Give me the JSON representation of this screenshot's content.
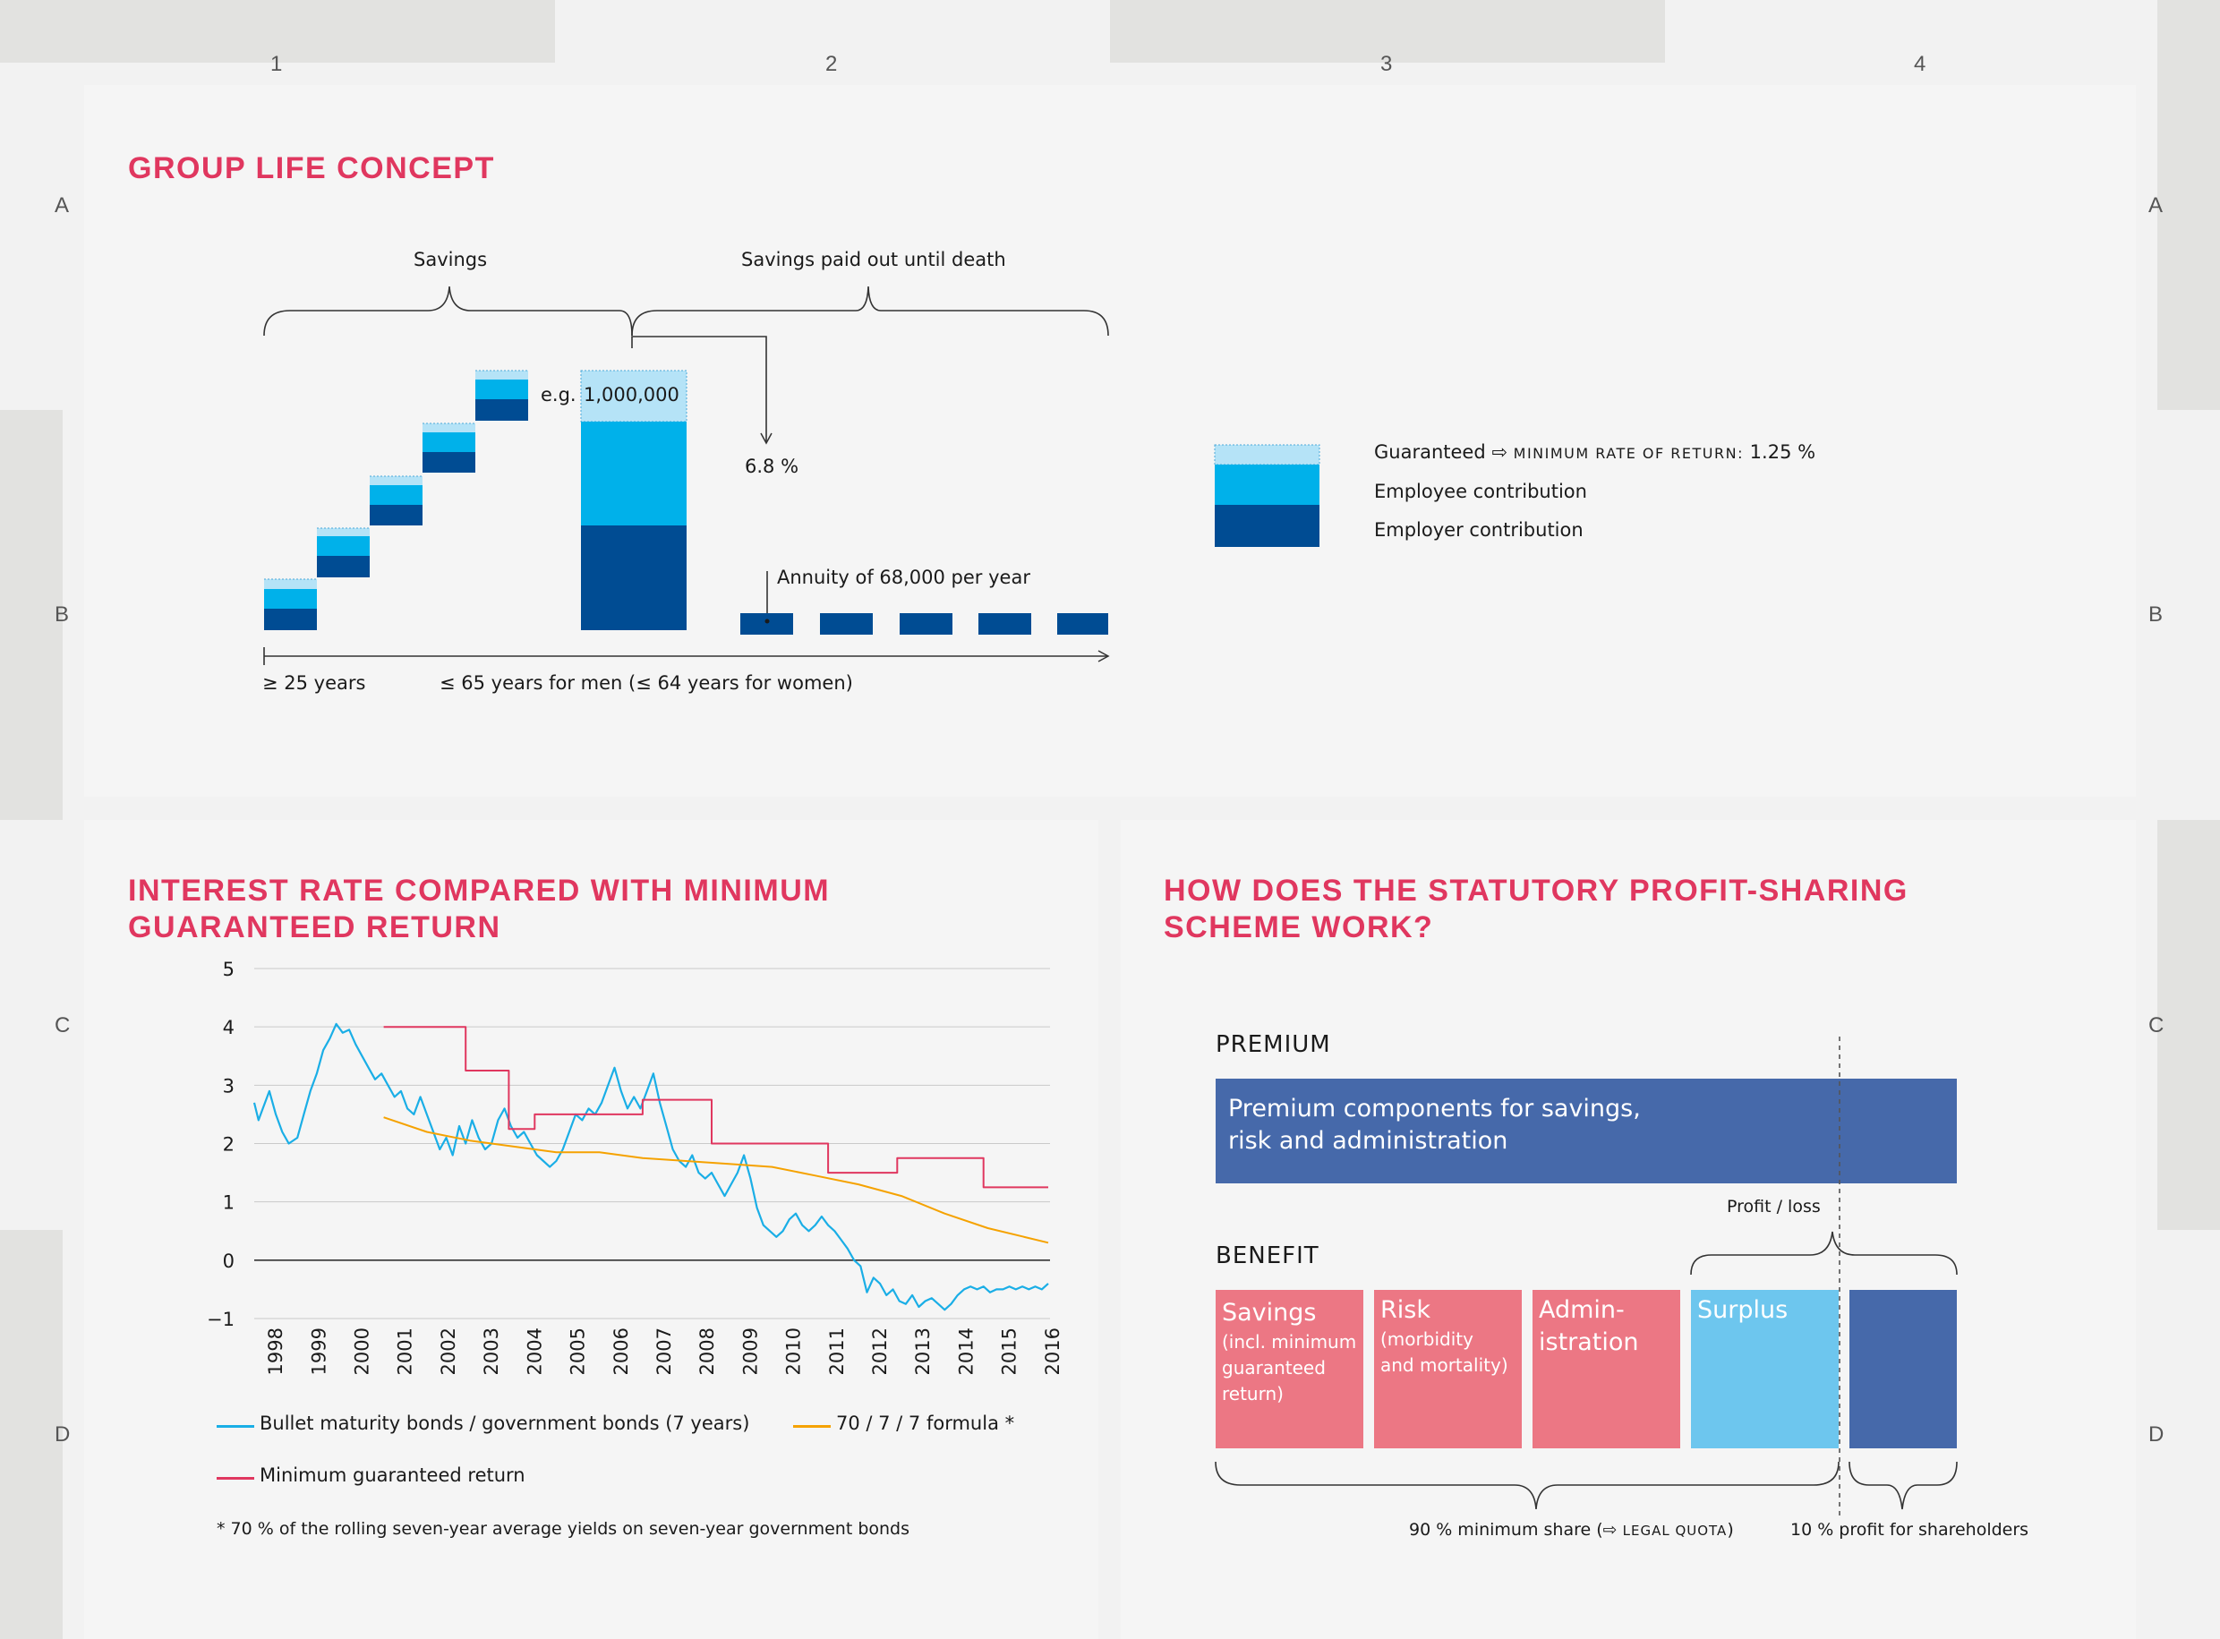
{
  "grid": {
    "columns": [
      "1",
      "2",
      "3",
      "4"
    ],
    "rows": [
      "A",
      "B",
      "C",
      "D"
    ]
  },
  "group_life": {
    "title": "GROUP LIFE CONCEPT",
    "savings_label": "Savings",
    "paid_out_label": "Savings paid out until death",
    "example_prefix": "e.g.",
    "example_value": "1,000,000",
    "rate_label": "6.8 %",
    "annuity_label": "Annuity of 68,000 per year",
    "age_start": "≥ 25 years",
    "age_end": "≤ 65 years for men (≤ 64 years for women)",
    "legend": {
      "guaranteed": "Guaranteed",
      "guaranteed_arrow": "⇨",
      "min_rate": "MINIMUM RATE OF RETURN:",
      "min_rate_value": "1.25 %",
      "employee": "Employee contribution",
      "employer": "Employer contribution"
    },
    "colors": {
      "guaranteed": "#b5e3f7",
      "employee": "#00b1ea",
      "employer": "#004c93"
    }
  },
  "interest": {
    "title_line1": "INTEREST RATE COMPARED WITH MINIMUM",
    "title_line2": "GUARANTEED RETURN",
    "legend_bonds": "Bullet maturity bonds / government bonds (7 years)",
    "legend_formula": "70 / 7 / 7 formula *",
    "legend_min": "Minimum guaranteed return",
    "footnote": "* 70 % of the rolling seven-year average yields on seven-year government bonds",
    "colors": {
      "bonds": "#1aaee6",
      "formula": "#f5a200",
      "min": "#e0375f"
    }
  },
  "chart_data": {
    "type": "line",
    "title": "INTEREST RATE COMPARED WITH MINIMUM GUARANTEED RETURN",
    "xlabel": "",
    "ylabel": "",
    "ylim": [
      -1,
      5
    ],
    "yticks": [
      "5",
      "4",
      "3",
      "2",
      "1",
      "0",
      "−1"
    ],
    "xlim": [
      1998,
      2016.4
    ],
    "xticks": [
      "1998",
      "1999",
      "2000",
      "2001",
      "2002",
      "2003",
      "2004",
      "2005",
      "2006",
      "2007",
      "2008",
      "2009",
      "2010",
      "2011",
      "2012",
      "2013",
      "2014",
      "2015",
      "2016"
    ],
    "grid": true,
    "series": [
      {
        "name": "Bullet maturity bonds / government bonds (7 years)",
        "x": [
          1998.0,
          1998.1,
          1998.2,
          1998.35,
          1998.5,
          1998.65,
          1998.8,
          1999.0,
          1999.15,
          1999.3,
          1999.45,
          1999.6,
          1999.75,
          1999.9,
          2000.05,
          2000.2,
          2000.35,
          2000.5,
          2000.65,
          2000.8,
          2000.95,
          2001.1,
          2001.25,
          2001.4,
          2001.55,
          2001.7,
          2001.85,
          2002.0,
          2002.15,
          2002.3,
          2002.45,
          2002.6,
          2002.75,
          2002.9,
          2003.05,
          2003.2,
          2003.35,
          2003.5,
          2003.65,
          2003.8,
          2003.95,
          2004.1,
          2004.25,
          2004.4,
          2004.55,
          2004.7,
          2004.85,
          2005.0,
          2005.15,
          2005.3,
          2005.45,
          2005.6,
          2005.75,
          2005.9,
          2006.05,
          2006.2,
          2006.35,
          2006.5,
          2006.65,
          2006.8,
          2006.95,
          2007.1,
          2007.25,
          2007.4,
          2007.55,
          2007.7,
          2007.85,
          2008.0,
          2008.15,
          2008.3,
          2008.45,
          2008.6,
          2008.75,
          2008.9,
          2009.05,
          2009.2,
          2009.35,
          2009.5,
          2009.65,
          2009.8,
          2009.95,
          2010.1,
          2010.25,
          2010.4,
          2010.55,
          2010.7,
          2010.85,
          2011.0,
          2011.15,
          2011.3,
          2011.45,
          2011.6,
          2011.75,
          2011.9,
          2012.05,
          2012.2,
          2012.35,
          2012.5,
          2012.65,
          2012.8,
          2012.95,
          2013.1,
          2013.25,
          2013.4,
          2013.55,
          2013.7,
          2013.85,
          2014.0,
          2014.15,
          2014.3,
          2014.45,
          2014.6,
          2014.75,
          2014.9,
          2015.05,
          2015.2,
          2015.35,
          2015.5,
          2015.65,
          2015.8,
          2015.95,
          2016.1,
          2016.25,
          2016.4
        ],
        "values": [
          2.7,
          2.4,
          2.6,
          2.9,
          2.5,
          2.2,
          2.0,
          2.1,
          2.5,
          2.9,
          3.2,
          3.6,
          3.8,
          4.05,
          3.9,
          3.95,
          3.7,
          3.5,
          3.3,
          3.1,
          3.2,
          3.0,
          2.8,
          2.9,
          2.6,
          2.5,
          2.8,
          2.5,
          2.2,
          1.9,
          2.1,
          1.8,
          2.3,
          2.0,
          2.4,
          2.1,
          1.9,
          2.0,
          2.4,
          2.6,
          2.3,
          2.1,
          2.2,
          2.0,
          1.8,
          1.7,
          1.6,
          1.7,
          1.9,
          2.2,
          2.5,
          2.4,
          2.6,
          2.5,
          2.7,
          3.0,
          3.3,
          2.9,
          2.6,
          2.8,
          2.6,
          2.9,
          3.2,
          2.7,
          2.3,
          1.9,
          1.7,
          1.6,
          1.8,
          1.5,
          1.4,
          1.5,
          1.3,
          1.1,
          1.3,
          1.5,
          1.8,
          1.4,
          0.9,
          0.6,
          0.5,
          0.4,
          0.5,
          0.7,
          0.8,
          0.6,
          0.5,
          0.6,
          0.75,
          0.6,
          0.5,
          0.35,
          0.2,
          0.0,
          -0.1,
          -0.55,
          -0.3,
          -0.4,
          -0.6,
          -0.5,
          -0.7,
          -0.75,
          -0.6,
          -0.8,
          -0.7,
          -0.65,
          -0.75,
          -0.85,
          -0.75,
          -0.6,
          -0.5,
          -0.45,
          -0.5,
          -0.45,
          -0.55,
          -0.5,
          -0.5,
          -0.45,
          -0.5,
          -0.45,
          -0.5,
          -0.45,
          -0.5,
          -0.4
        ]
      },
      {
        "name": "70 / 7 / 7 formula *",
        "x": [
          2001,
          2002,
          2003,
          2004,
          2005,
          2006,
          2007,
          2008,
          2009,
          2010,
          2011,
          2012,
          2013,
          2014,
          2015,
          2016.4
        ],
        "values": [
          2.45,
          2.2,
          2.05,
          1.95,
          1.85,
          1.85,
          1.75,
          1.7,
          1.65,
          1.6,
          1.45,
          1.3,
          1.1,
          0.8,
          0.55,
          0.3
        ]
      },
      {
        "name": "Minimum guaranteed return",
        "x": [
          2001,
          2002.9,
          2002.9,
          2003.9,
          2003.9,
          2004.5,
          2004.5,
          2007.0,
          2007.0,
          2008.6,
          2008.6,
          2011.3,
          2011.3,
          2012.9,
          2012.9,
          2014.9,
          2014.9,
          2016.4
        ],
        "values": [
          4.0,
          4.0,
          3.25,
          3.25,
          2.25,
          2.25,
          2.5,
          2.5,
          2.75,
          2.75,
          2.0,
          2.0,
          1.5,
          1.5,
          1.75,
          1.75,
          1.25,
          1.25
        ]
      }
    ]
  },
  "profit": {
    "title_line1": "HOW DOES THE STATUTORY PROFIT-SHARING",
    "title_line2": "SCHEME WORK?",
    "premium_label": "PREMIUM",
    "premium_line1": "Premium components for savings,",
    "premium_line2": "risk and administration",
    "profit_loss": "Profit / loss",
    "benefit_label": "BENEFIT",
    "boxes": [
      {
        "title": "Savings",
        "sub1": "(incl. minimum",
        "sub2": "guaranteed",
        "sub3": "return)"
      },
      {
        "title": "Risk",
        "sub1": "(morbidity",
        "sub2": "and mortality)",
        "sub3": ""
      },
      {
        "title": "Admin-",
        "title2": "istration"
      },
      {
        "title": "Surplus"
      }
    ],
    "quota_label": "90 % minimum share (",
    "quota_arrow": "⇨",
    "quota_sc": "LEGAL QUOTA",
    "quota_close": ")",
    "shareholders": "10 % profit for shareholders",
    "colors": {
      "premium": "#4669aa",
      "pink": "#ec7784",
      "surplus": "#6dc6ee",
      "shareholder": "#4669aa"
    }
  }
}
